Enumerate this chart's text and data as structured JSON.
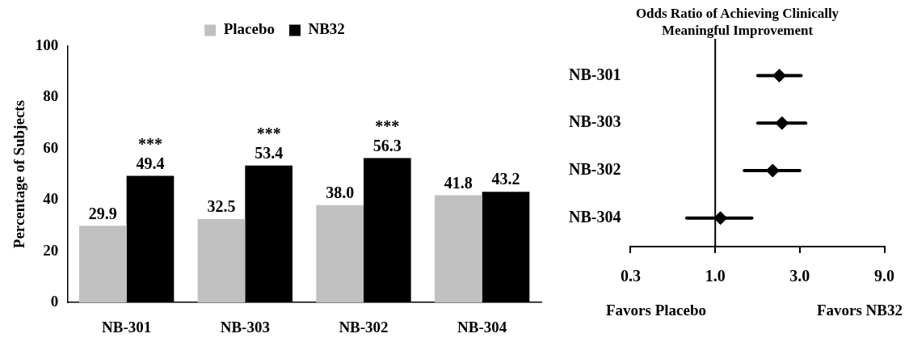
{
  "chart_data": [
    {
      "type": "bar",
      "ylabel": "Percentage of Subjects",
      "categories": [
        "NB-301",
        "NB-303",
        "NB-302",
        "NB-304"
      ],
      "series": [
        {
          "name": "Placebo",
          "color": "#c0c0c0",
          "values": [
            29.9,
            32.5,
            38.0,
            41.8
          ],
          "value_labels": [
            "29.9",
            "32.5",
            "38.0",
            "41.8"
          ]
        },
        {
          "name": "NB32",
          "color": "#000000",
          "values": [
            49.4,
            53.4,
            56.3,
            43.2
          ],
          "value_labels": [
            "49.4",
            "53.4",
            "56.3",
            "43.2"
          ]
        }
      ],
      "ylim": [
        0,
        100
      ],
      "yticks": [
        0,
        20,
        40,
        60,
        80,
        100
      ],
      "grid": false,
      "legend": "top",
      "annotations": [
        {
          "text": "***",
          "x": "NB-301",
          "y": 49.4
        },
        {
          "text": "***",
          "x": "NB-303",
          "y": 53.4
        },
        {
          "text": "***",
          "x": "NB-302",
          "y": 56.3
        }
      ]
    },
    {
      "type": "scatter",
      "title": "Odds Ratio of Achieving Clinically Meaningful Improvement",
      "orientation": "horizontal",
      "categories": [
        "NB-301",
        "NB-303",
        "NB-302",
        "NB-304"
      ],
      "series": [
        {
          "color": "#000000",
          "values": [
            2.3,
            2.38,
            2.11,
            1.07
          ],
          "errors": [
            [
              1.74,
              3.05
            ],
            [
              1.74,
              3.24
            ],
            [
              1.46,
              3.0
            ],
            [
              0.69,
              1.61
            ]
          ]
        }
      ],
      "marker": "diamond",
      "log": "x",
      "xlim": [
        0.333,
        9
      ],
      "xticks": [
        {
          "value": 0.333,
          "label": "0.3"
        },
        {
          "value": 1,
          "label": "1.0"
        },
        {
          "value": 3,
          "label": "3.0"
        },
        {
          "value": 9,
          "label": "9.0"
        }
      ],
      "ref_lines": [
        {
          "axis": "x",
          "value": 1,
          "color": "#000000"
        }
      ],
      "grid": false,
      "legend": false,
      "annotations": [
        "Favors Placebo",
        "Favors NB32"
      ]
    }
  ]
}
